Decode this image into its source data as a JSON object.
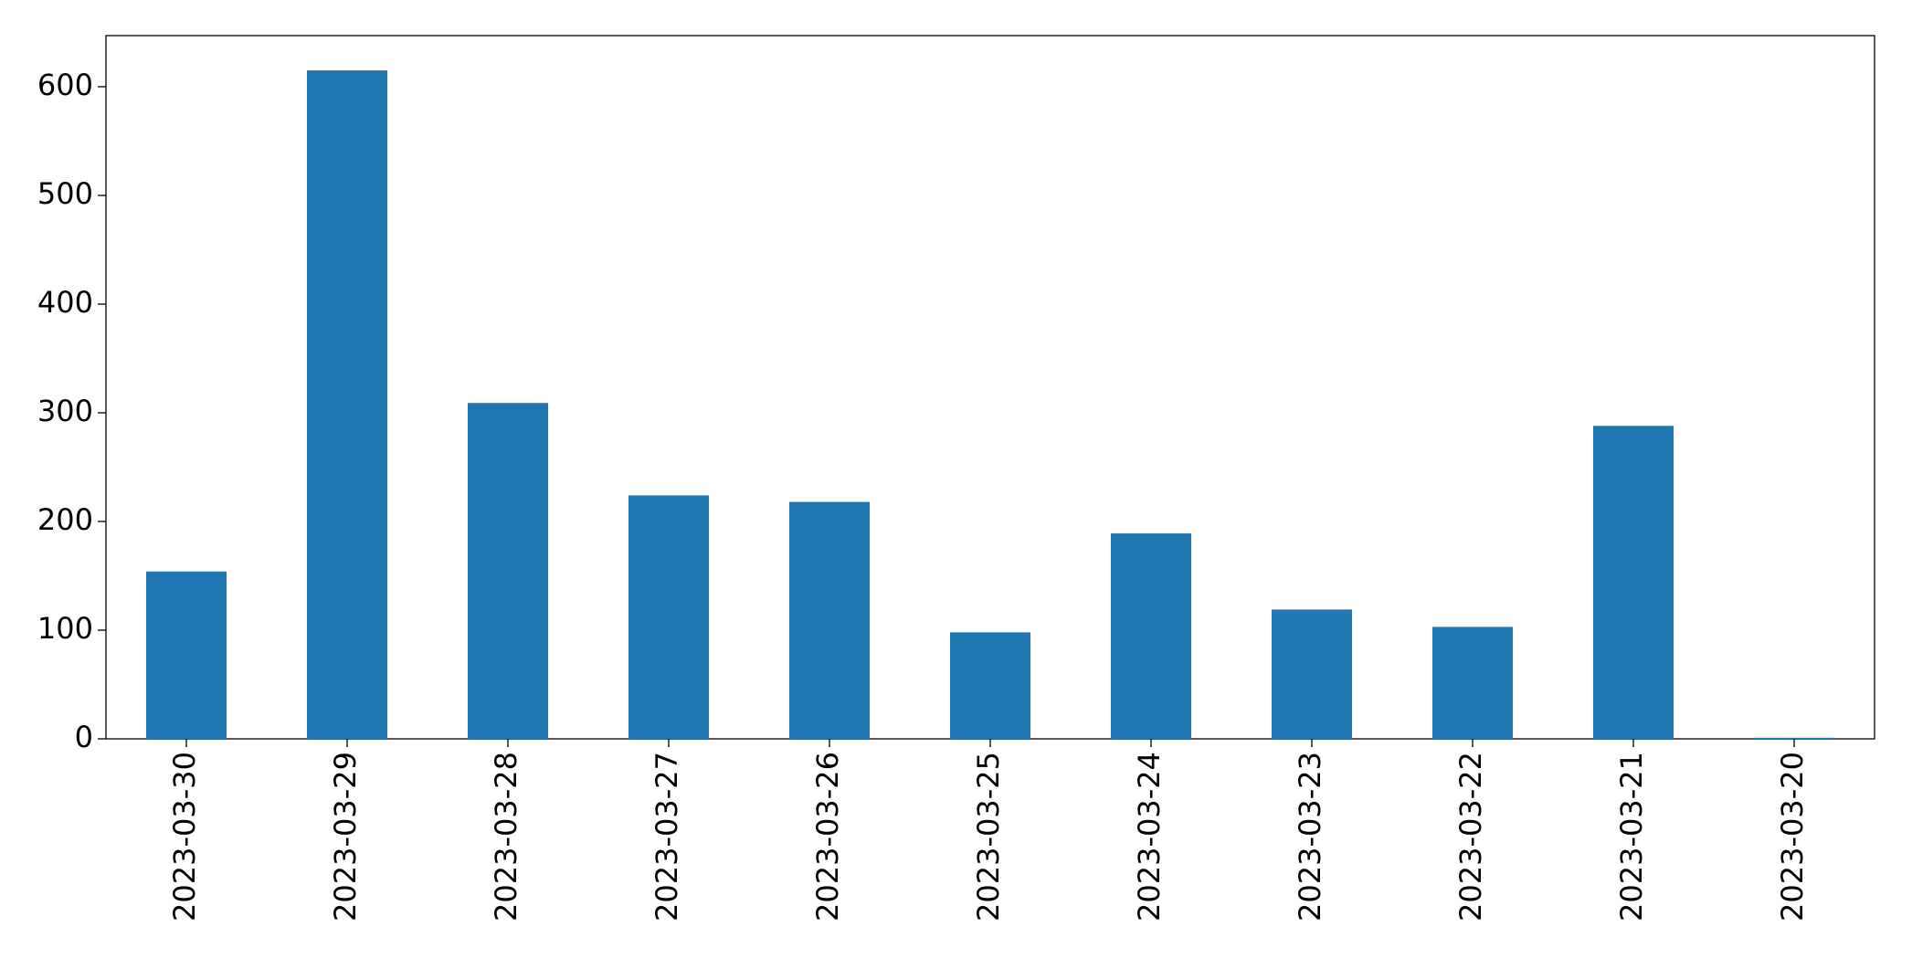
{
  "chart_data": {
    "type": "bar",
    "categories": [
      "2023-03-30",
      "2023-03-29",
      "2023-03-28",
      "2023-03-27",
      "2023-03-26",
      "2023-03-25",
      "2023-03-24",
      "2023-03-23",
      "2023-03-22",
      "2023-03-21",
      "2023-03-20"
    ],
    "values": [
      154,
      615,
      309,
      224,
      218,
      98,
      189,
      119,
      103,
      288,
      1
    ],
    "color": "#1f77b4",
    "ylim": [
      0,
      647
    ],
    "yticks": [
      0,
      100,
      200,
      300,
      400,
      500,
      600
    ],
    "grid": false
  }
}
